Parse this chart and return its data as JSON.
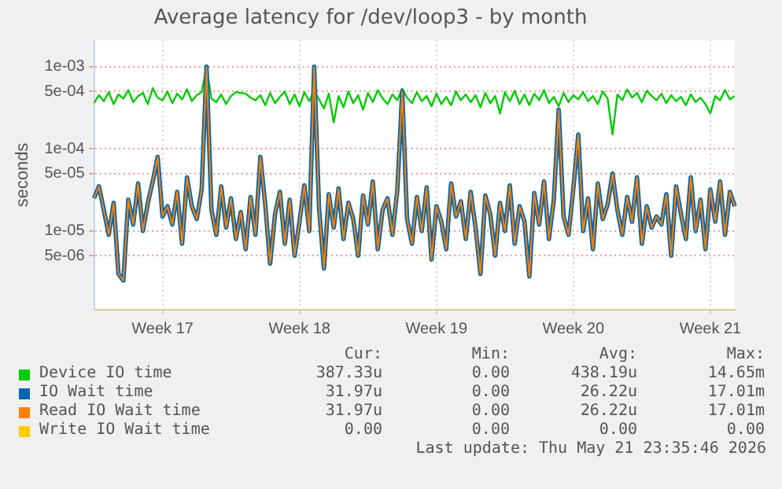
{
  "chart_data": {
    "type": "line",
    "title": "Average latency for /dev/loop3 - by month",
    "ylabel": "seconds",
    "log": "y",
    "grid": true,
    "legend": "bottom",
    "ylim": [
      1.1e-06,
      0.0021
    ],
    "yticks": [
      {
        "value": 5e-06,
        "label": "5e-06"
      },
      {
        "value": 1e-05,
        "label": "1e-05"
      },
      {
        "value": 5e-05,
        "label": "5e-05"
      },
      {
        "value": 0.0001,
        "label": "1e-04"
      },
      {
        "value": 0.0005,
        "label": "5e-04"
      },
      {
        "value": 0.001,
        "label": "1e-03"
      }
    ],
    "categories": [
      null,
      null,
      null,
      null,
      null,
      null,
      null,
      null,
      null,
      null,
      null,
      null,
      null,
      null,
      "Week 17",
      null,
      null,
      null,
      null,
      null,
      null,
      null,
      null,
      null,
      null,
      null,
      null,
      null,
      null,
      null,
      null,
      null,
      null,
      null,
      null,
      null,
      null,
      null,
      null,
      null,
      null,
      null,
      "Week 18",
      null,
      null,
      null,
      null,
      null,
      null,
      null,
      null,
      null,
      null,
      null,
      null,
      null,
      null,
      null,
      null,
      null,
      null,
      null,
      null,
      null,
      null,
      null,
      null,
      null,
      null,
      null,
      "Week 19",
      null,
      null,
      null,
      null,
      null,
      null,
      null,
      null,
      null,
      null,
      null,
      null,
      null,
      null,
      null,
      null,
      null,
      null,
      null,
      null,
      null,
      null,
      null,
      null,
      null,
      null,
      null,
      "Week 20",
      null,
      null,
      null,
      null,
      null,
      null,
      null,
      null,
      null,
      null,
      null,
      null,
      null,
      null,
      null,
      null,
      null,
      null,
      null,
      null,
      null,
      null,
      null,
      null,
      null,
      null,
      null,
      "Week 21",
      null,
      null,
      null,
      null,
      null
    ],
    "series": [
      {
        "name": "Device IO time",
        "color": "#00cc00",
        "values": [
          0.00036,
          0.00045,
          0.00038,
          0.00049,
          0.00035,
          0.00046,
          0.00041,
          0.00052,
          0.00037,
          0.00044,
          0.00048,
          0.00035,
          0.00055,
          0.00042,
          0.00039,
          0.0005,
          0.00036,
          0.00047,
          0.0004,
          0.00053,
          0.00038,
          0.00045,
          0.00049,
          0.001,
          0.00041,
          0.00037,
          0.00046,
          0.00035,
          0.00044,
          0.00049,
          0.00048,
          0.00047,
          0.00042,
          0.00039,
          0.00045,
          0.00034,
          0.00048,
          0.00036,
          0.00043,
          0.0005,
          0.00035,
          0.00046,
          0.00033,
          0.00049,
          0.00038,
          0.00051,
          0.0004,
          0.00031,
          0.00047,
          0.00021,
          0.00044,
          0.00032,
          0.0005,
          0.00036,
          0.00045,
          0.0003,
          0.00048,
          0.00037,
          0.00052,
          0.00041,
          0.00035,
          0.00046,
          0.00039,
          0.00054,
          0.00042,
          0.00036,
          0.00049,
          0.00038,
          0.00044,
          0.00033,
          0.00047,
          0.00035,
          0.00043,
          0.00034,
          0.0005,
          0.00039,
          0.00046,
          0.00037,
          0.00045,
          0.00032,
          0.00048,
          0.00036,
          0.00044,
          0.00027,
          0.00049,
          0.00038,
          0.00051,
          0.00035,
          0.00046,
          0.00034,
          0.00047,
          0.00039,
          0.00052,
          0.00036,
          0.00043,
          0.00033,
          0.00048,
          0.00037,
          0.00045,
          0.0004,
          0.00049,
          0.00038,
          0.00044,
          0.00035,
          0.0005,
          0.00041,
          0.00015,
          0.00046,
          0.00039,
          0.00053,
          0.00042,
          0.00048,
          0.00037,
          0.00051,
          0.00044,
          0.00039,
          0.00047,
          0.00036,
          0.00045,
          0.00038,
          0.00043,
          0.00034,
          0.00046,
          0.00037,
          0.00042,
          0.00035,
          0.00027,
          0.00044,
          0.00039,
          0.00052,
          0.0004,
          0.00044
        ]
      },
      {
        "name": "IO Wait time",
        "color": "#0066b3",
        "values": [
          2.5e-05,
          3.5e-05,
          1.8e-05,
          9e-06,
          2.2e-05,
          3e-06,
          2.5e-06,
          2.4e-05,
          1.2e-05,
          3.8e-05,
          1e-05,
          2.2e-05,
          4e-05,
          8e-05,
          1.5e-05,
          2e-05,
          1.2e-05,
          3e-05,
          7e-06,
          4.5e-05,
          2e-05,
          1.4e-05,
          3.2e-05,
          0.001,
          1.8e-05,
          9e-06,
          3.5e-05,
          1.1e-05,
          2.5e-05,
          8e-06,
          1.7e-05,
          6e-06,
          2.6e-05,
          9e-06,
          8e-05,
          2.1e-05,
          4e-06,
          1.6e-05,
          3e-05,
          7e-06,
          2.4e-05,
          5e-06,
          1.3e-05,
          3.6e-05,
          1e-05,
          0.001,
          1.9e-05,
          3.5e-06,
          2.8e-05,
          1.1e-05,
          3.3e-05,
          8e-06,
          2.2e-05,
          1.4e-05,
          5e-06,
          2.7e-05,
          1.2e-05,
          4e-05,
          6e-06,
          1.8e-05,
          2.5e-05,
          9e-06,
          3.1e-05,
          0.0005,
          1.4e-05,
          7e-06,
          2.6e-05,
          1e-05,
          3.4e-05,
          4.5e-06,
          2e-05,
          1.3e-05,
          6e-06,
          3.8e-05,
          1.5e-05,
          2.3e-05,
          8e-06,
          3e-05,
          1.1e-05,
          3e-06,
          2.7e-05,
          1.6e-05,
          5e-06,
          2.2e-05,
          1e-05,
          3.6e-05,
          7e-06,
          2e-05,
          1.3e-05,
          2.8e-06,
          2.9e-05,
          1.2e-05,
          4e-05,
          8e-06,
          2.4e-05,
          0.0003,
          1.5e-05,
          9e-06,
          3.3e-05,
          0.00015,
          1e-05,
          2.5e-05,
          6e-06,
          3.8e-05,
          1.4e-05,
          2.1e-05,
          5e-05,
          1.8e-05,
          9e-06,
          2.6e-05,
          1.3e-05,
          4.5e-05,
          7e-06,
          2e-05,
          1.1e-05,
          1.5e-05,
          1.2e-05,
          2.8e-05,
          5e-06,
          3.5e-05,
          1.6e-05,
          8e-06,
          4.5e-05,
          1e-05,
          2.4e-05,
          6e-06,
          3.2e-05,
          1.3e-05,
          4e-05,
          9e-06,
          3e-05,
          2e-05
        ]
      },
      {
        "name": "Read IO Wait time",
        "color": "#ff8000",
        "values": [
          2.5e-05,
          3.5e-05,
          1.8e-05,
          9e-06,
          2.2e-05,
          3e-06,
          2.5e-06,
          2.4e-05,
          1.2e-05,
          3.8e-05,
          1e-05,
          2.2e-05,
          4e-05,
          8e-05,
          1.5e-05,
          2e-05,
          1.2e-05,
          3e-05,
          7e-06,
          4.5e-05,
          2e-05,
          1.4e-05,
          3.2e-05,
          0.001,
          1.8e-05,
          9e-06,
          3.5e-05,
          1.1e-05,
          2.5e-05,
          8e-06,
          1.7e-05,
          6e-06,
          2.6e-05,
          9e-06,
          8e-05,
          2.1e-05,
          4e-06,
          1.6e-05,
          3e-05,
          7e-06,
          2.4e-05,
          5e-06,
          1.3e-05,
          3.6e-05,
          1e-05,
          0.001,
          1.9e-05,
          3.5e-06,
          2.8e-05,
          1.1e-05,
          3.3e-05,
          8e-06,
          2.2e-05,
          1.4e-05,
          5e-06,
          2.7e-05,
          1.2e-05,
          4e-05,
          6e-06,
          1.8e-05,
          2.5e-05,
          9e-06,
          3.1e-05,
          0.0005,
          1.4e-05,
          7e-06,
          2.6e-05,
          1e-05,
          3.4e-05,
          4.5e-06,
          2e-05,
          1.3e-05,
          6e-06,
          3.8e-05,
          1.5e-05,
          2.3e-05,
          8e-06,
          3e-05,
          1.1e-05,
          3e-06,
          2.7e-05,
          1.6e-05,
          5e-06,
          2.2e-05,
          1e-05,
          3.6e-05,
          7e-06,
          2e-05,
          1.3e-05,
          2.8e-06,
          2.9e-05,
          1.2e-05,
          4e-05,
          8e-06,
          2.4e-05,
          0.0003,
          1.5e-05,
          9e-06,
          3.3e-05,
          0.00015,
          1e-05,
          2.5e-05,
          6e-06,
          3.8e-05,
          1.4e-05,
          2.1e-05,
          5e-05,
          1.8e-05,
          9e-06,
          2.6e-05,
          1.3e-05,
          4.5e-05,
          7e-06,
          2e-05,
          1.1e-05,
          1.5e-05,
          1.2e-05,
          2.8e-05,
          5e-06,
          3.5e-05,
          1.6e-05,
          8e-06,
          4.5e-05,
          1e-05,
          2.4e-05,
          6e-06,
          3.2e-05,
          1.3e-05,
          4e-05,
          9e-06,
          3e-05,
          2e-05
        ]
      },
      {
        "name": "Write IO Wait time",
        "color": "#ffcc00",
        "values": [
          null,
          null,
          null,
          null,
          null,
          null,
          null,
          null,
          null,
          null,
          null,
          null,
          null,
          null,
          null,
          null,
          null,
          null,
          null,
          null,
          null,
          null,
          null,
          null,
          null,
          null,
          null,
          null,
          null,
          null,
          null,
          null,
          null,
          null,
          null,
          null,
          null,
          null,
          null,
          null,
          null,
          null,
          null,
          null,
          null,
          null,
          null,
          null,
          null,
          null,
          null,
          null,
          null,
          null,
          null,
          null,
          null,
          null,
          null,
          null,
          null,
          null,
          null,
          null,
          null,
          null,
          null,
          null,
          null,
          null,
          null,
          null,
          null,
          null,
          null,
          null,
          null,
          null,
          null,
          null,
          null,
          null,
          null,
          null,
          null,
          null,
          null,
          null,
          null,
          null,
          null,
          null,
          null,
          null,
          null,
          null,
          null,
          null,
          null,
          null,
          null,
          null,
          null,
          null,
          null,
          null,
          null,
          null,
          null,
          null,
          null,
          null,
          null,
          null,
          null,
          null,
          null,
          null,
          null,
          null,
          null,
          null,
          null,
          null,
          null,
          null,
          null,
          null,
          null,
          null,
          null,
          null
        ]
      }
    ],
    "annotations": [
      "Cur:",
      "Min:",
      "Avg:",
      "Max:",
      "387.33u",
      "0.00",
      "438.19u",
      "14.65m",
      "31.97u",
      "0.00",
      "26.22u",
      "17.01m",
      "31.97u",
      "0.00",
      "26.22u",
      "17.01m",
      "0.00",
      "0.00",
      "0.00",
      "0.00",
      "Last update: Thu May 21 23:35:46 2026"
    ]
  }
}
